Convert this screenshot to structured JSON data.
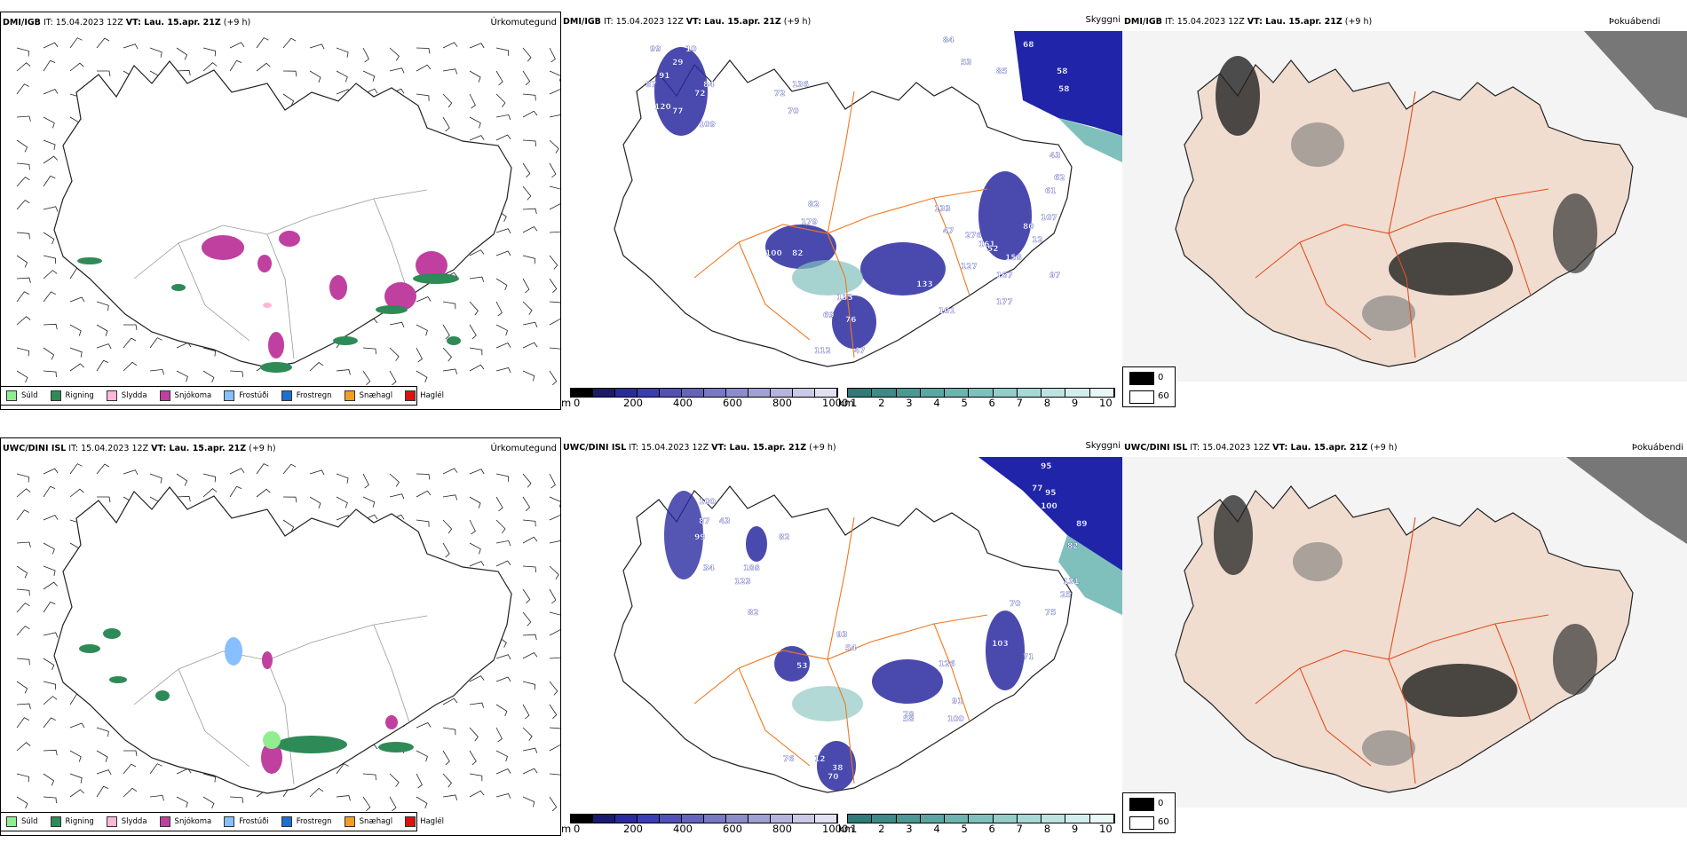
{
  "rows": [
    {
      "header_model": "DMI/IGB",
      "header_it": " IT: 15.04.2023 12Z ",
      "header_vt": "VT: Lau. 15.apr. 21Z",
      "header_offset": " (+9 h)",
      "precip_title": "Úrkomutegund",
      "cloud_title": "Skyggni",
      "vis_title": "Þokuábendi",
      "cloud_labels": [
        "84",
        "68",
        "53",
        "85",
        "58",
        "58",
        "99",
        "10",
        "29",
        "91",
        "84",
        "72",
        "77",
        "109",
        "87",
        "120",
        "72",
        "136",
        "70",
        "43",
        "62",
        "61",
        "82",
        "107",
        "80",
        "133",
        "179",
        "100",
        "82",
        "47",
        "276",
        "161",
        "167",
        "127",
        "97",
        "158",
        "133",
        "177",
        "101",
        "52",
        "133",
        "69",
        "76",
        "112",
        "47",
        "12"
      ]
    },
    {
      "header_model": "UWC/DINI ISL",
      "header_it": " IT: 15.04.2023 12Z ",
      "header_vt": "VT: Lau. 15.apr. 21Z",
      "header_offset": " (+9 h)",
      "precip_title": "Úrkomutegund",
      "cloud_title": "Skyggni",
      "vis_title": "Þokuábendi",
      "cloud_labels": [
        "95",
        "77",
        "95",
        "100",
        "89",
        "82",
        "100",
        "87",
        "43",
        "99",
        "34",
        "82",
        "188",
        "54",
        "53",
        "93",
        "123",
        "126",
        "103",
        "75",
        "71",
        "131",
        "25",
        "70",
        "91",
        "78",
        "100",
        "38",
        "70",
        "76",
        "12",
        "58",
        "82"
      ]
    }
  ],
  "precip_legend": [
    {
      "label": "Súld",
      "color": "#90ee90"
    },
    {
      "label": "Rigning",
      "color": "#2e8b57"
    },
    {
      "label": "Slydda",
      "color": "#ffb6d9"
    },
    {
      "label": "Snjókoma",
      "color": "#c040a0"
    },
    {
      "label": "Frostúði",
      "color": "#87bfff"
    },
    {
      "label": "Frostregn",
      "color": "#1f6fd0"
    },
    {
      "label": "Snæhagl",
      "color": "#f0a020"
    },
    {
      "label": "Haglél",
      "color": "#dd1111"
    }
  ],
  "height_bar": {
    "unit": "m",
    "ticks": [
      "0",
      "200",
      "400",
      "600",
      "800",
      "1000"
    ],
    "colors": [
      "#000000",
      "#1a1a6e",
      "#2a2aa0",
      "#3c3cb4",
      "#5050b8",
      "#6464bc",
      "#7878c4",
      "#8c8cca",
      "#a0a0d2",
      "#b4b4dc",
      "#cacae6",
      "#e0e0f0"
    ]
  },
  "vis_bar": {
    "unit": "km",
    "ticks": [
      "1",
      "2",
      "3",
      "4",
      "5",
      "6",
      "7",
      "8",
      "9",
      "10"
    ],
    "colors": [
      "#2e7b78",
      "#3d8a86",
      "#4c9894",
      "#5ca6a2",
      "#6db3af",
      "#80c0bc",
      "#93ccc8",
      "#a7d8d5",
      "#bce3e1",
      "#d2eeec",
      "#e9f7f6"
    ]
  },
  "fog_legend": {
    "high": "0",
    "low": "60",
    "high_color": "#000000",
    "low_color": "#ffffff"
  }
}
